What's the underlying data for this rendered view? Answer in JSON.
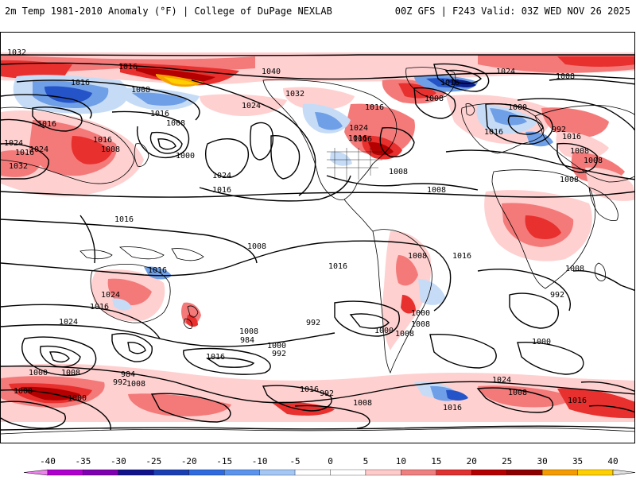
{
  "header": {
    "left_title": "2m Temp 1981-2010 Anomaly (°F) | College of DuPage NEXLAB",
    "right_title": "00Z GFS | F243 Valid: 03Z WED NOV 26 2025"
  },
  "colors": {
    "land_outline": "#000000",
    "isobar": "#000000",
    "warm_light": "#ffd0d0",
    "warm_mid": "#f47a7a",
    "warm_strong": "#e8302e",
    "warm_dark": "#b40000",
    "hot": "#f5a300",
    "hot2": "#ffd000",
    "cold_light": "#c6dcf6",
    "cold_mid": "#6f9fe6",
    "cold_strong": "#2554c8",
    "cold_dark": "#0b1e8c"
  },
  "colorbar": {
    "ticks": [
      "-40",
      "-35",
      "-30",
      "-25",
      "-20",
      "-15",
      "-10",
      "-5",
      "0",
      "5",
      "10",
      "15",
      "20",
      "25",
      "30",
      "35",
      "40"
    ],
    "colors": [
      "#ee82ee",
      "#b000d0",
      "#7e00b0",
      "#11138c",
      "#1a3fb4",
      "#2e6ae0",
      "#5a94ee",
      "#a3c8f6",
      "#ffffff",
      "#ffffff",
      "#ffcaca",
      "#f08080",
      "#e03030",
      "#b40000",
      "#8c0000",
      "#f59b00",
      "#ffd000",
      "#e0e0e0"
    ]
  },
  "isobar_labels": [
    "1032",
    "1016",
    "1040",
    "1024",
    "1008",
    "1016",
    "1008",
    "1016",
    "1032",
    "1016",
    "1024",
    "1016",
    "1016",
    "1008",
    "1000",
    "1016",
    "1008",
    "1008",
    "992",
    "1024",
    "1024",
    "1016",
    "1000",
    "1024",
    "1016",
    "1032",
    "1016",
    "1016",
    "1008",
    "1008",
    "1016",
    "1024",
    "1016",
    "1008",
    "1008",
    "1008",
    "1016",
    "1008",
    "1016",
    "1016",
    "1008",
    "1016",
    "1008",
    "1024",
    "1016",
    "1024",
    "1000",
    "1008",
    "992",
    "1008",
    "1000",
    "1008",
    "984",
    "992",
    "1000",
    "992",
    "1016",
    "1000",
    "1008",
    "984",
    "992",
    "1008",
    "1000",
    "1008",
    "1016",
    "992",
    "1008",
    "1016",
    "1008",
    "1024",
    "1000",
    "1016"
  ]
}
